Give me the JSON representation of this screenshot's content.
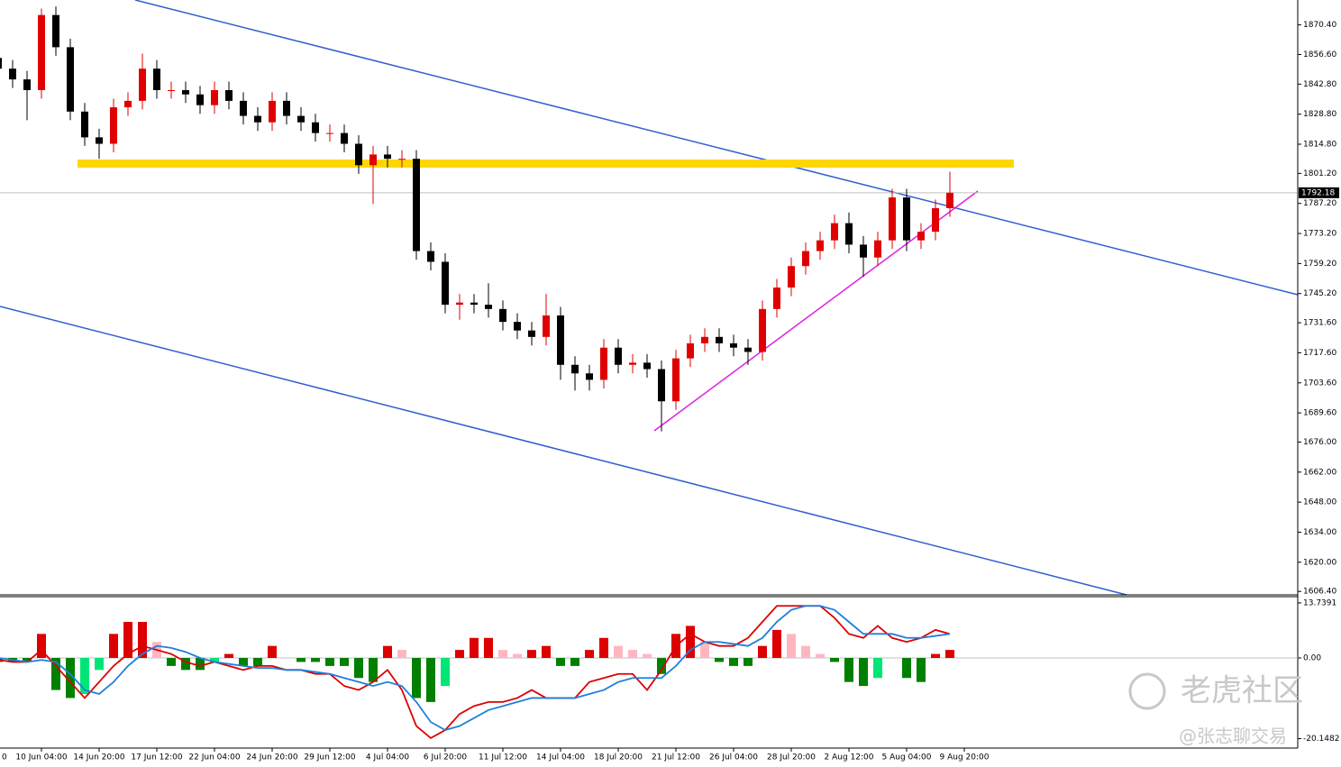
{
  "chart_data": [
    {
      "type": "candlestick",
      "categories": [
        "0",
        null,
        null,
        "10 Jun 04:00",
        null,
        null,
        null,
        "14 Jun 20:00",
        null,
        null,
        null,
        "17 Jun 12:00",
        null,
        null,
        null,
        "22 Jun 04:00",
        null,
        null,
        null,
        "24 Jun 20:00",
        null,
        null,
        null,
        "29 Jun 12:00",
        null,
        null,
        null,
        "4 Jul 04:00",
        null,
        null,
        null,
        "6 Jul 20:00",
        null,
        null,
        null,
        "11 Jul 12:00",
        null,
        null,
        null,
        "14 Jul 04:00",
        null,
        null,
        null,
        "18 Jul 20:00",
        null,
        null,
        null,
        "21 Jul 12:00",
        null,
        null,
        null,
        "26 Jul 04:00",
        null,
        null,
        null,
        "28 Jul 20:00",
        null,
        null,
        null,
        "2 Aug 12:00",
        null,
        null,
        null,
        "5 Aug 04:00",
        null,
        null,
        null,
        "9 Aug 20:00"
      ],
      "open": [
        1855,
        1850,
        1845,
        1840,
        1875,
        1860,
        1830,
        1818,
        1815,
        1832,
        1835,
        1850,
        1840,
        1840,
        1838,
        1833,
        1840,
        1835,
        1828,
        1825,
        1835,
        1828,
        1825,
        1820,
        1820,
        1815,
        1805,
        1810,
        1808,
        1808,
        1765,
        1760,
        1740,
        1741,
        1740,
        1738,
        1732,
        1728,
        1725,
        1735,
        1712,
        1708,
        1705,
        1720,
        1712,
        1713,
        1710,
        1695,
        1715,
        1722,
        1725,
        1722,
        1720,
        1718,
        1738,
        1748,
        1758,
        1765,
        1770,
        1778,
        1768,
        1762,
        1770,
        1790,
        1770,
        1774,
        1785,
        null
      ],
      "high": [
        1859,
        1854,
        1849,
        1878,
        1879,
        1864,
        1834,
        1822,
        1836,
        1839,
        1857,
        1854,
        1844,
        1844,
        1842,
        1844,
        1844,
        1839,
        1832,
        1839,
        1839,
        1832,
        1829,
        1824,
        1824,
        1819,
        1814,
        1814,
        1812,
        1812,
        1769,
        1764,
        1745,
        1745,
        1750,
        1742,
        1736,
        1732,
        1745,
        1739,
        1716,
        1712,
        1724,
        1724,
        1717,
        1717,
        1714,
        1719,
        1726,
        1729,
        1729,
        1726,
        1724,
        1742,
        1752,
        1762,
        1769,
        1774,
        1782,
        1783,
        1772,
        1774,
        1794,
        1794,
        1778,
        1789,
        1802,
        null
      ],
      "low": [
        1846,
        1841,
        1826,
        1836,
        1856,
        1826,
        1814,
        1808,
        1811,
        1828,
        1831,
        1836,
        1836,
        1834,
        1829,
        1829,
        1831,
        1824,
        1821,
        1821,
        1824,
        1821,
        1816,
        1816,
        1811,
        1801,
        1787,
        1804,
        1804,
        1761,
        1756,
        1736,
        1733,
        1736,
        1734,
        1728,
        1724,
        1721,
        1721,
        1705,
        1700,
        1700,
        1701,
        1708,
        1708,
        1706,
        1681,
        1691,
        1711,
        1718,
        1718,
        1716,
        1712,
        1714,
        1734,
        1744,
        1754,
        1761,
        1766,
        1764,
        1753,
        1758,
        1766,
        1765,
        1766,
        1770,
        1781,
        null
      ],
      "close": [
        1850,
        1845,
        1840,
        1875,
        1860,
        1830,
        1818,
        1815,
        1832,
        1835,
        1850,
        1840,
        1840,
        1838,
        1833,
        1840,
        1835,
        1828,
        1825,
        1835,
        1828,
        1825,
        1820,
        1820,
        1815,
        1805,
        1810,
        1808,
        1808,
        1765,
        1760,
        1740,
        1741,
        1740,
        1738,
        1732,
        1728,
        1725,
        1735,
        1712,
        1708,
        1705,
        1720,
        1712,
        1713,
        1710,
        1695,
        1715,
        1722,
        1725,
        1722,
        1720,
        1718,
        1738,
        1748,
        1758,
        1765,
        1770,
        1778,
        1768,
        1762,
        1770,
        1790,
        1770,
        1774,
        1785,
        1792.18,
        null
      ],
      "colors": {
        "up": "#e00000",
        "down": "#000000"
      },
      "ylim": [
        1604.8,
        1882
      ],
      "yticks": [
        {
          "value": 1870.4,
          "label": "1870.40"
        },
        {
          "value": 1856.6,
          "label": "1856.60"
        },
        {
          "value": 1842.8,
          "label": "1842.80"
        },
        {
          "value": 1828.8,
          "label": "1828.80"
        },
        {
          "value": 1814.8,
          "label": "1814.80"
        },
        {
          "value": 1801.2,
          "label": "1801.20"
        },
        {
          "value": 1787.2,
          "label": "1787.20"
        },
        {
          "value": 1773.2,
          "label": "1773.20"
        },
        {
          "value": 1759.2,
          "label": "1759.20"
        },
        {
          "value": 1745.2,
          "label": "1745.20"
        },
        {
          "value": 1731.6,
          "label": "1731.60"
        },
        {
          "value": 1717.6,
          "label": "1717.60"
        },
        {
          "value": 1703.6,
          "label": "1703.60"
        },
        {
          "value": 1689.6,
          "label": "1689.60"
        },
        {
          "value": 1676,
          "label": "1676.00"
        },
        {
          "value": 1662,
          "label": "1662.00"
        },
        {
          "value": 1648,
          "label": "1648.00"
        },
        {
          "value": 1634,
          "label": "1634.00"
        },
        {
          "value": 1620,
          "label": "1620.00"
        },
        {
          "value": 1606.4,
          "label": "1606.40"
        }
      ],
      "last_price": 1792.18
    },
    {
      "type": "macd",
      "histogram": [
        -1,
        -1,
        -1,
        6,
        -8,
        -10,
        -9,
        -3,
        6,
        9,
        9,
        4,
        -2,
        -3,
        -3,
        -1,
        1,
        -2,
        -2,
        3,
        0,
        -1,
        -1,
        -2,
        -2,
        -5,
        -6,
        3,
        2,
        -10,
        -11,
        -7,
        2,
        5,
        5,
        2,
        1,
        2,
        3,
        -2,
        -2,
        2,
        5,
        3,
        2,
        1,
        -4,
        6,
        8,
        4,
        -1,
        -2,
        -2,
        3,
        7,
        6,
        3,
        1,
        -1,
        -6,
        -7,
        -5,
        0,
        -5,
        -6,
        1,
        2,
        null
      ],
      "histogram_colors": {
        "positive_rising": "#dd0000",
        "positive_falling": "#ffb6c1",
        "negative_falling": "#008000",
        "negative_rising": "#00e676"
      },
      "macd_line": {
        "color": "#dd0000",
        "values": [
          -0.5,
          -1,
          -1,
          2,
          -2,
          -6,
          -10,
          -6,
          -2,
          1,
          3,
          2,
          1,
          -1,
          -2,
          -1,
          -2,
          -3,
          -2,
          -2,
          -3,
          -3,
          -4,
          -4,
          -7,
          -8,
          -6,
          -3,
          -8,
          -17,
          -20,
          -18,
          -14,
          -12,
          -11,
          -11,
          -10,
          -8,
          -10,
          -10,
          -10,
          -6,
          -5,
          -4,
          -4,
          -8,
          -3,
          3,
          6,
          4,
          3,
          3,
          5,
          9,
          13,
          13,
          13,
          13,
          10,
          6,
          5,
          8,
          5,
          4,
          5,
          7,
          6,
          null
        ]
      },
      "signal_line": {
        "color": "#1e7fdc",
        "values": [
          0,
          -0.5,
          -1,
          -0.5,
          -1,
          -4,
          -8,
          -9,
          -6,
          -2,
          1,
          3,
          2.5,
          1.5,
          0,
          -1,
          -1.5,
          -2,
          -2.5,
          -2.5,
          -3,
          -3,
          -3.5,
          -4,
          -5,
          -6,
          -7,
          -6,
          -7,
          -11,
          -16,
          -18,
          -17,
          -15,
          -13,
          -12,
          -11,
          -10,
          -10,
          -10,
          -10,
          -9,
          -8,
          -6,
          -5,
          -5,
          -5,
          -2,
          2,
          4,
          4,
          3.5,
          3,
          5,
          9,
          12,
          13,
          13,
          12,
          9,
          6,
          6,
          6,
          5,
          5,
          5.5,
          6,
          null
        ]
      },
      "ylim": [
        -22.5,
        15.3
      ],
      "yticks": [
        13.7391,
        {
          "value": 0,
          "label": "0.00"
        },
        -20.1482
      ]
    }
  ],
  "watermark": {
    "title": "老虎社区",
    "handle": "@张志聊交易"
  }
}
